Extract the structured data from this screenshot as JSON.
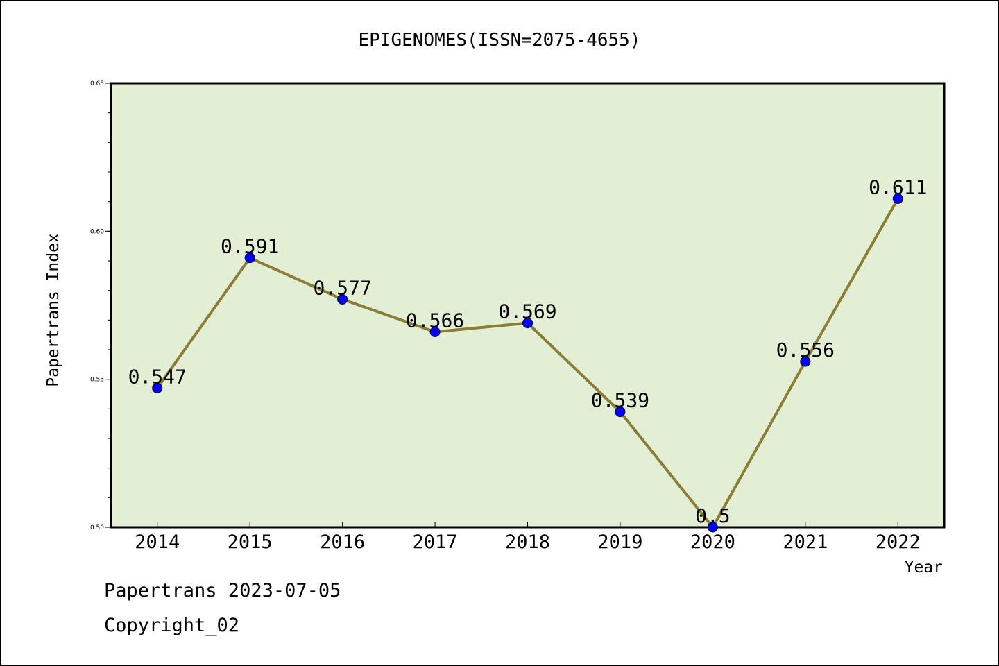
{
  "chart_data": {
    "type": "line",
    "title": "EPIGENOMES(ISSN=2075-4655)",
    "xlabel": "Year",
    "ylabel": "Papertrans Index",
    "categories": [
      "2014",
      "2015",
      "2016",
      "2017",
      "2018",
      "2019",
      "2020",
      "2021",
      "2022"
    ],
    "values": [
      0.547,
      0.591,
      0.577,
      0.566,
      0.569,
      0.539,
      0.5,
      0.556,
      0.611
    ],
    "data_labels": [
      "0.547",
      "0.591",
      "0.577",
      "0.566",
      "0.569",
      "0.539",
      "0.5",
      "0.556",
      "0.611"
    ],
    "ylim": [
      0.5,
      0.65
    ],
    "yticks": [
      0.5,
      0.55,
      0.6,
      0.65
    ],
    "ytick_labels": [
      "0.50",
      "0.55",
      "0.60",
      "0.65"
    ],
    "grid": false,
    "legend": "none",
    "colors": {
      "plot_bg": "#e2efd5",
      "line": "#8b7d35",
      "marker": "#0000ff",
      "axis": "#000000"
    }
  },
  "footer": {
    "date_line": "Papertrans 2023-07-05",
    "copyright": "Copyright_02"
  }
}
